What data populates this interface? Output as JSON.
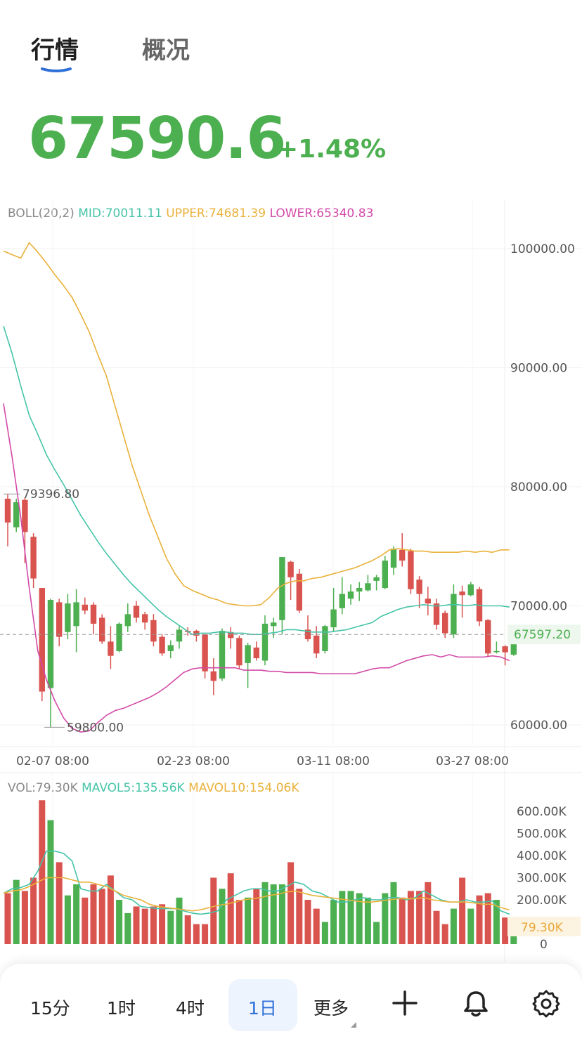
{
  "tabs": {
    "market": "行情",
    "overview": "概况"
  },
  "ticker": {
    "price": "67590.6",
    "change": "+1.48%"
  },
  "boll": {
    "label": "BOLL(20,2)",
    "mid": "MID:70011.11",
    "upper": "UPPER:74681.39",
    "lower": "LOWER:65340.83"
  },
  "vol_legend": {
    "vol": "VOL:79.30K",
    "mavol5": "MAVOL5:135.56K",
    "mavol10": "MAVOL10:154.06K"
  },
  "price_axis": [
    "100000.00",
    "90000.00",
    "80000.00",
    "70000.00",
    "60000.00"
  ],
  "current_price_label": "67597.20",
  "annotations": {
    "high": "79396.80",
    "low": "59800.00"
  },
  "x_axis": [
    "02-07 08:00",
    "02-23 08:00",
    "03-11 08:00",
    "03-27 08:00"
  ],
  "volume_axis": [
    "600.00K",
    "500.00K",
    "400.00K",
    "300.00K",
    "200.00K",
    "0"
  ],
  "current_volume_label": "79.30K",
  "toolbar": {
    "items": [
      "15分",
      "1时",
      "4时",
      "1日",
      "更多"
    ],
    "active": "1日"
  },
  "colors": {
    "up": "#4caf50",
    "down": "#d9534f",
    "mid_line": "#45c4a8",
    "upper_line": "#e9b13a",
    "lower_line": "#d24aa8",
    "accent": "#2f6fd8"
  },
  "icons": [
    "plus-icon",
    "bell-icon",
    "gear-icon"
  ],
  "chart_data": {
    "type": "candlestick",
    "interval": "1日",
    "price_ylim": [
      58000,
      104000
    ],
    "candles": [
      {
        "o": 79000,
        "h": 79400,
        "l": 75000,
        "c": 77000
      },
      {
        "o": 76600,
        "h": 79000,
        "l": 76200,
        "c": 78700
      },
      {
        "o": 78900,
        "h": 79100,
        "l": 73600,
        "c": 76200
      },
      {
        "o": 75800,
        "h": 76100,
        "l": 71500,
        "c": 72300
      },
      {
        "o": 71500,
        "h": 71500,
        "l": 62000,
        "c": 62800
      },
      {
        "o": 63100,
        "h": 70600,
        "l": 59800,
        "c": 70500
      },
      {
        "o": 70300,
        "h": 70600,
        "l": 66600,
        "c": 67400
      },
      {
        "o": 67800,
        "h": 71000,
        "l": 67200,
        "c": 70200
      },
      {
        "o": 68300,
        "h": 71400,
        "l": 66100,
        "c": 70300
      },
      {
        "o": 70100,
        "h": 70700,
        "l": 69300,
        "c": 69600
      },
      {
        "o": 70100,
        "h": 70300,
        "l": 67600,
        "c": 68500
      },
      {
        "o": 69000,
        "h": 69300,
        "l": 66800,
        "c": 67000
      },
      {
        "o": 67000,
        "h": 68300,
        "l": 64700,
        "c": 65800
      },
      {
        "o": 66200,
        "h": 68600,
        "l": 66100,
        "c": 68500
      },
      {
        "o": 68300,
        "h": 70200,
        "l": 67800,
        "c": 69300
      },
      {
        "o": 70000,
        "h": 70400,
        "l": 68600,
        "c": 69000
      },
      {
        "o": 69300,
        "h": 69500,
        "l": 68000,
        "c": 68600
      },
      {
        "o": 68800,
        "h": 69300,
        "l": 66600,
        "c": 67000
      },
      {
        "o": 67400,
        "h": 67600,
        "l": 65800,
        "c": 66000
      },
      {
        "o": 66200,
        "h": 67100,
        "l": 65600,
        "c": 66700
      },
      {
        "o": 67000,
        "h": 68300,
        "l": 66400,
        "c": 68000
      },
      {
        "o": 67900,
        "h": 68200,
        "l": 67500,
        "c": 67800
      },
      {
        "o": 67900,
        "h": 68000,
        "l": 67000,
        "c": 67500
      },
      {
        "o": 67600,
        "h": 67600,
        "l": 63900,
        "c": 64500
      },
      {
        "o": 64500,
        "h": 65600,
        "l": 62500,
        "c": 63700
      },
      {
        "o": 63900,
        "h": 68100,
        "l": 63700,
        "c": 67900
      },
      {
        "o": 67800,
        "h": 68200,
        "l": 66400,
        "c": 67300
      },
      {
        "o": 67300,
        "h": 67500,
        "l": 64700,
        "c": 65000
      },
      {
        "o": 65200,
        "h": 66900,
        "l": 63100,
        "c": 66700
      },
      {
        "o": 66500,
        "h": 67000,
        "l": 65400,
        "c": 65600
      },
      {
        "o": 65400,
        "h": 69200,
        "l": 65000,
        "c": 68500
      },
      {
        "o": 68300,
        "h": 69000,
        "l": 67300,
        "c": 68600
      },
      {
        "o": 68800,
        "h": 74100,
        "l": 67600,
        "c": 74100
      },
      {
        "o": 73700,
        "h": 73800,
        "l": 70500,
        "c": 72400
      },
      {
        "o": 72700,
        "h": 73100,
        "l": 69400,
        "c": 69600
      },
      {
        "o": 68000,
        "h": 69200,
        "l": 67000,
        "c": 67200
      },
      {
        "o": 67500,
        "h": 68300,
        "l": 65600,
        "c": 66000
      },
      {
        "o": 66200,
        "h": 68400,
        "l": 66000,
        "c": 68300
      },
      {
        "o": 68200,
        "h": 71500,
        "l": 67800,
        "c": 69700
      },
      {
        "o": 69800,
        "h": 72400,
        "l": 69300,
        "c": 71000
      },
      {
        "o": 70600,
        "h": 71800,
        "l": 70100,
        "c": 71200
      },
      {
        "o": 71200,
        "h": 72000,
        "l": 70400,
        "c": 71500
      },
      {
        "o": 71300,
        "h": 72600,
        "l": 71200,
        "c": 71900
      },
      {
        "o": 72100,
        "h": 72600,
        "l": 71300,
        "c": 72400
      },
      {
        "o": 71500,
        "h": 74200,
        "l": 71400,
        "c": 73800
      },
      {
        "o": 73200,
        "h": 75000,
        "l": 72600,
        "c": 74800
      },
      {
        "o": 74700,
        "h": 76100,
        "l": 73300,
        "c": 73800
      },
      {
        "o": 74600,
        "h": 74800,
        "l": 71000,
        "c": 71400
      },
      {
        "o": 72200,
        "h": 72500,
        "l": 69800,
        "c": 71000
      },
      {
        "o": 70600,
        "h": 71600,
        "l": 69200,
        "c": 70200
      },
      {
        "o": 70200,
        "h": 70600,
        "l": 68000,
        "c": 68400
      },
      {
        "o": 69400,
        "h": 69600,
        "l": 67300,
        "c": 67700
      },
      {
        "o": 67600,
        "h": 71800,
        "l": 67300,
        "c": 71000
      },
      {
        "o": 71200,
        "h": 71700,
        "l": 69000,
        "c": 70900
      },
      {
        "o": 70900,
        "h": 72000,
        "l": 70800,
        "c": 71800
      },
      {
        "o": 71400,
        "h": 71600,
        "l": 68300,
        "c": 68700
      },
      {
        "o": 68800,
        "h": 68900,
        "l": 65700,
        "c": 66000
      },
      {
        "o": 66200,
        "h": 67000,
        "l": 66000,
        "c": 66200
      },
      {
        "o": 66600,
        "h": 66700,
        "l": 65000,
        "c": 66100
      },
      {
        "o": 65900,
        "h": 68000,
        "l": 65800,
        "c": 67600
      }
    ],
    "boll_upper": [
      99800,
      99500,
      99200,
      100500,
      99700,
      98800,
      97800,
      96900,
      95900,
      94500,
      93000,
      91100,
      89300,
      86800,
      84300,
      81800,
      79700,
      77600,
      75800,
      74000,
      72700,
      71700,
      71300,
      71000,
      70700,
      70500,
      70200,
      70100,
      70000,
      70000,
      70100,
      70700,
      71500,
      71900,
      72100,
      72100,
      72300,
      72400,
      72600,
      72800,
      73000,
      73200,
      73500,
      73800,
      74200,
      74700,
      74800,
      74700,
      74600,
      74600,
      74500,
      74500,
      74500,
      74500,
      74600,
      74500,
      74600,
      74500,
      74700,
      74700
    ],
    "boll_mid": [
      93500,
      91200,
      88500,
      86000,
      84400,
      82700,
      81400,
      80200,
      78900,
      77600,
      76500,
      75400,
      74400,
      73500,
      72600,
      71800,
      71100,
      70400,
      69700,
      69100,
      68600,
      68100,
      67600,
      67700,
      67700,
      67800,
      67800,
      67700,
      67700,
      67600,
      67600,
      67700,
      67800,
      68000,
      68000,
      67900,
      67800,
      67800,
      67800,
      67900,
      68000,
      68200,
      68400,
      68600,
      69100,
      69400,
      69700,
      69900,
      70000,
      70100,
      70000,
      70000,
      70100,
      70100,
      70000,
      70100,
      70000,
      70000,
      70000,
      69900
    ],
    "boll_lower": [
      87000,
      82500,
      77500,
      71500,
      66200,
      63800,
      62000,
      60600,
      59700,
      59400,
      59500,
      60200,
      60800,
      61200,
      61400,
      61700,
      62000,
      62300,
      62700,
      63200,
      63800,
      64400,
      64700,
      64800,
      64800,
      64800,
      64800,
      64800,
      64600,
      64600,
      64600,
      64500,
      64500,
      64400,
      64400,
      64400,
      64400,
      64300,
      64300,
      64300,
      64300,
      64300,
      64500,
      64700,
      64800,
      64800,
      65100,
      65400,
      65600,
      65800,
      65900,
      65700,
      65900,
      65700,
      65700,
      65700,
      65700,
      65800,
      65700,
      65400
    ]
  },
  "volume_data": {
    "ylim": [
      0,
      680000
    ],
    "values": [
      230000,
      290000,
      240000,
      300000,
      650000,
      560000,
      370000,
      220000,
      270000,
      210000,
      270000,
      250000,
      310000,
      200000,
      140000,
      170000,
      160000,
      170000,
      180000,
      150000,
      210000,
      130000,
      90000,
      90000,
      300000,
      250000,
      320000,
      200000,
      210000,
      250000,
      280000,
      270000,
      270000,
      370000,
      250000,
      200000,
      160000,
      100000,
      200000,
      240000,
      240000,
      230000,
      210000,
      100000,
      230000,
      280000,
      210000,
      240000,
      240000,
      280000,
      150000,
      90000,
      160000,
      300000,
      160000,
      220000,
      230000,
      200000,
      120000,
      80000
    ],
    "mavol5": [
      230000,
      250000,
      255000,
      270000,
      330000,
      420000,
      420000,
      410000,
      375000,
      250000,
      240000,
      240000,
      270000,
      240000,
      210000,
      200000,
      170000,
      165000,
      160000,
      160000,
      160000,
      150000,
      140000,
      135000,
      140000,
      150000,
      200000,
      220000,
      240000,
      250000,
      250000,
      240000,
      240000,
      260000,
      280000,
      270000,
      240000,
      230000,
      210000,
      190000,
      190000,
      200000,
      210000,
      200000,
      200000,
      210000,
      210000,
      200000,
      210000,
      240000,
      220000,
      200000,
      190000,
      190000,
      200000,
      190000,
      190000,
      195000,
      150000,
      135000
    ],
    "mavol10": [
      230000,
      240000,
      245000,
      260000,
      280000,
      300000,
      300000,
      300000,
      290000,
      280000,
      280000,
      270000,
      260000,
      240000,
      220000,
      210000,
      200000,
      180000,
      170000,
      165000,
      160000,
      155000,
      150000,
      155000,
      165000,
      175000,
      180000,
      190000,
      200000,
      205000,
      210000,
      220000,
      225000,
      235000,
      240000,
      230000,
      220000,
      215000,
      210000,
      205000,
      200000,
      195000,
      190000,
      190000,
      195000,
      200000,
      205000,
      205000,
      205000,
      210000,
      200000,
      195000,
      190000,
      190000,
      190000,
      185000,
      180000,
      180000,
      165000,
      154000
    ]
  }
}
